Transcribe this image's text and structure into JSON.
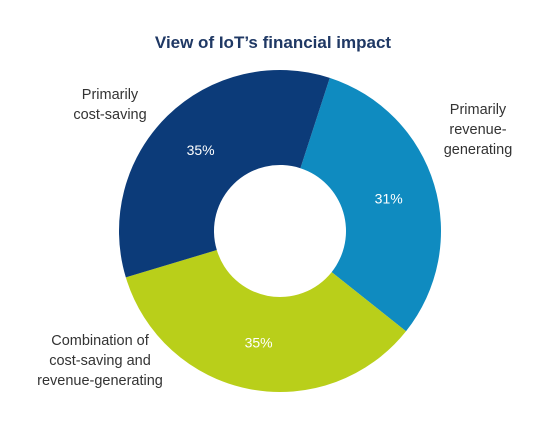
{
  "chart_data": {
    "type": "pie",
    "title": "View of IoT’s financial impact",
    "slices": [
      {
        "label_lines": [
          "Primarily",
          "revenue-",
          "generating"
        ],
        "value": 31,
        "display": "31%",
        "color": "#0f8bc0"
      },
      {
        "label_lines": [
          "Combination of",
          "cost-saving and",
          "revenue-generating"
        ],
        "value": 35,
        "display": "35%",
        "color": "#b9cf1a"
      },
      {
        "label_lines": [
          "Primarily",
          "cost-saving"
        ],
        "value": 35,
        "display": "35%",
        "color": "#0c3b79"
      }
    ]
  }
}
